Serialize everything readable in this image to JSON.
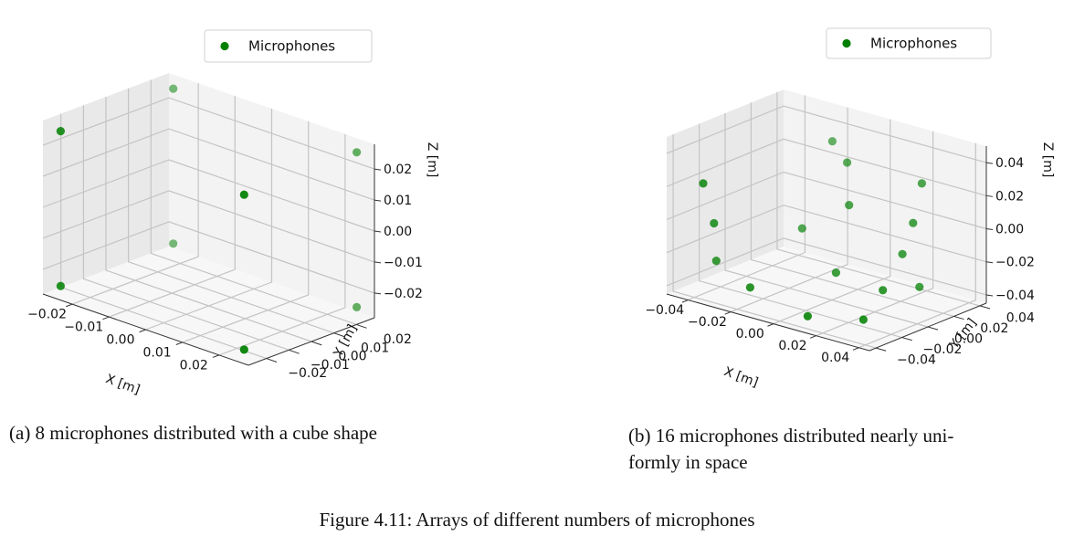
{
  "figure_caption": "Figure 4.11: Arrays of different numbers of microphones",
  "marker_color": "#008000",
  "chart_data": [
    {
      "type": "scatter",
      "projection": "3d",
      "caption": "(a) 8 microphones distributed with a cube shape",
      "legend": "Microphones",
      "legend_position": "top-right",
      "xlabel": "X [m]",
      "ylabel": "Y [m]",
      "zlabel": "Z [m]",
      "xlim": [
        -0.028,
        0.028
      ],
      "ylim": [
        -0.028,
        0.028
      ],
      "zlim": [
        -0.028,
        0.028
      ],
      "xticks": [
        "−0.02",
        "−0.01",
        "0.00",
        "0.01",
        "0.02"
      ],
      "yticks": [
        "−0.02",
        "−0.01",
        "0.00",
        "0.01",
        "0.02"
      ],
      "zticks": [
        "−0.02",
        "−0.01",
        "0.00",
        "0.01",
        "0.02"
      ],
      "grid": true,
      "points": [
        {
          "x": -0.025,
          "y": -0.025,
          "z": 0.025
        },
        {
          "x": 0.025,
          "y": -0.025,
          "z": 0.025
        },
        {
          "x": -0.025,
          "y": 0.025,
          "z": 0.025
        },
        {
          "x": 0.025,
          "y": 0.025,
          "z": 0.025
        },
        {
          "x": -0.025,
          "y": -0.025,
          "z": -0.025
        },
        {
          "x": 0.025,
          "y": -0.025,
          "z": -0.025
        },
        {
          "x": -0.025,
          "y": 0.025,
          "z": -0.025
        },
        {
          "x": 0.025,
          "y": 0.025,
          "z": -0.025
        }
      ]
    },
    {
      "type": "scatter",
      "projection": "3d",
      "caption": "(b) 16 microphones distributed nearly uni-formly in space",
      "caption_lines": [
        "(b) 16 microphones distributed nearly uni-",
        "formly in space"
      ],
      "legend": "Microphones",
      "legend_position": "top-right",
      "xlabel": "X [m]",
      "ylabel": "Y [m]",
      "zlabel": "Z [m]",
      "xlim": [
        -0.05,
        0.045
      ],
      "ylim": [
        -0.045,
        0.045
      ],
      "zlim": [
        -0.045,
        0.05
      ],
      "xticks": [
        "−0.04",
        "−0.02",
        "0.00",
        "0.02",
        "0.04"
      ],
      "yticks": [
        "−0.04",
        "−0.02",
        "0.00",
        "0.02",
        "0.04"
      ],
      "zticks": [
        "−0.04",
        "−0.02",
        "0.00",
        "0.02",
        "0.04"
      ],
      "grid": true,
      "points": [
        {
          "x": -0.042,
          "y": -0.03,
          "z": 0.02
        },
        {
          "x": -0.04,
          "y": -0.025,
          "z": -0.005
        },
        {
          "x": -0.042,
          "y": -0.02,
          "z": -0.03
        },
        {
          "x": -0.02,
          "y": -0.03,
          "z": -0.035
        },
        {
          "x": -0.018,
          "y": 0.03,
          "z": 0.035
        },
        {
          "x": -0.005,
          "y": 0.02,
          "z": 0.03
        },
        {
          "x": 0.002,
          "y": 0.01,
          "z": 0.01
        },
        {
          "x": -0.02,
          "y": 0.01,
          "z": -0.012
        },
        {
          "x": 0.005,
          "y": -0.005,
          "z": -0.025
        },
        {
          "x": 0.01,
          "y": -0.035,
          "z": -0.04
        },
        {
          "x": 0.03,
          "y": -0.01,
          "z": -0.025
        },
        {
          "x": 0.03,
          "y": -0.025,
          "z": -0.038
        },
        {
          "x": 0.03,
          "y": 0.02,
          "z": 0.03
        },
        {
          "x": 0.032,
          "y": 0.01,
          "z": 0.01
        },
        {
          "x": 0.03,
          "y": 0.005,
          "z": -0.008
        },
        {
          "x": 0.038,
          "y": 0.005,
          "z": -0.025
        }
      ]
    }
  ]
}
